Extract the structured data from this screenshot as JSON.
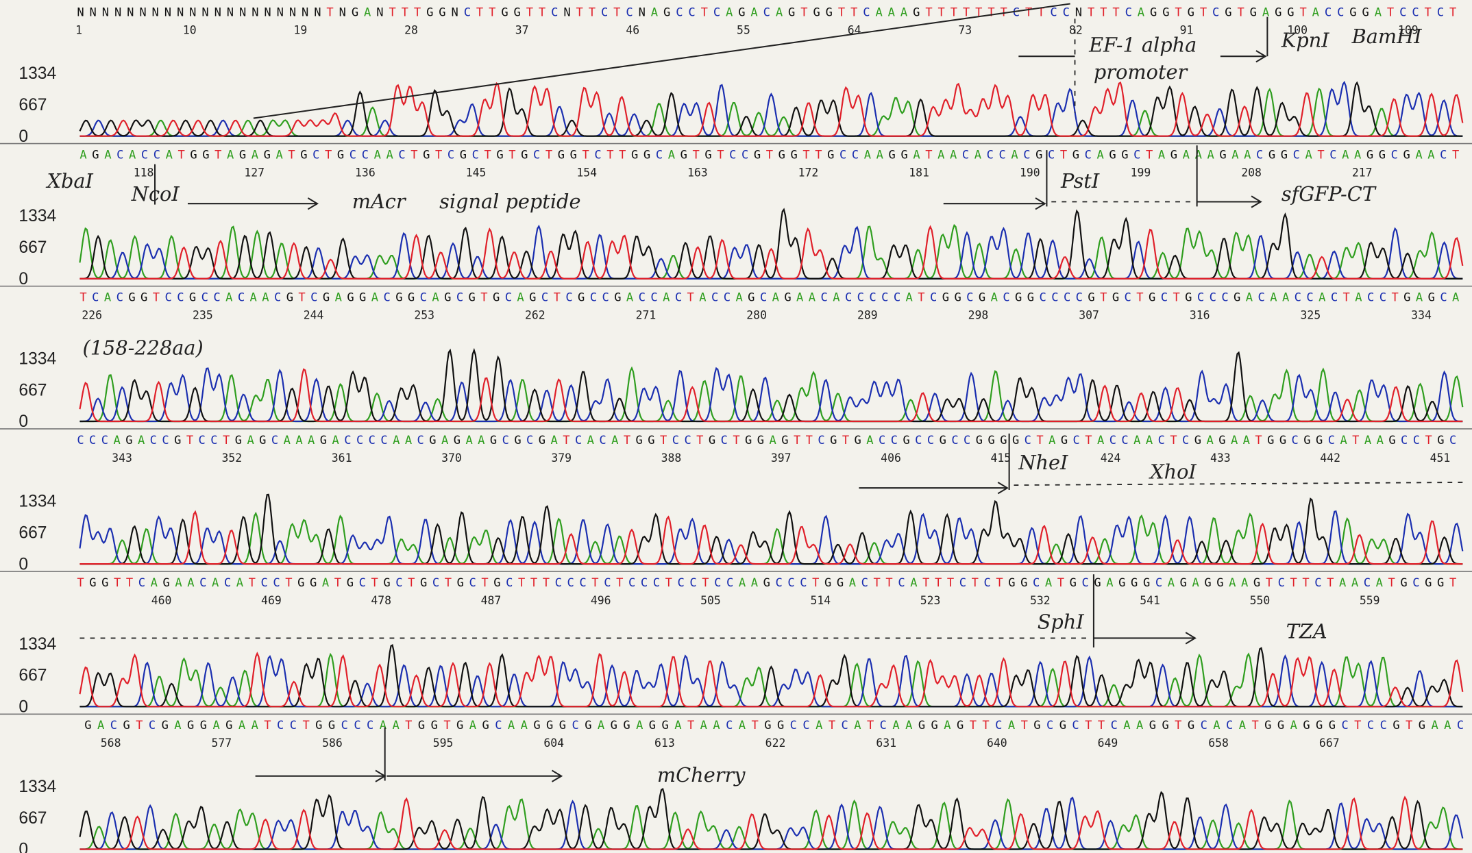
{
  "y_axis_ticks": [
    1334,
    667,
    0
  ],
  "rows": [
    {
      "sequence": "NNNNNNNNNNNNNNNNNNNNTNGANTTTGGNCTTGGTTCNTTCTCNAGCCTCAGACAGTGGTTCAAAGTTTTTTTCTTCCNTTTCAGGTGTCGTGAGGTACCGGATCCTCT",
      "positions": [
        1,
        10,
        19,
        28,
        37,
        46,
        55,
        64,
        73,
        82,
        91,
        100,
        109
      ],
      "annotations": [
        "EF-1 alpha",
        "promoter",
        "KpnI",
        "BamHI"
      ]
    },
    {
      "sequence": "AGACACCATGGTAGAGATGCTGCCAACTGTCGCTGTGCTGGTCTTGGCAGTGTCCGTGGTTGCCAAGGATAACACCACGCTGCAGGCTAGAAAGAACGGCATCAAGGCGAACT",
      "positions": [
        118,
        127,
        136,
        145,
        154,
        163,
        172,
        181,
        190,
        199,
        208,
        217
      ],
      "annotations": [
        "XbaI",
        "NcoI",
        "mAcr",
        "signal peptide",
        "PstI",
        "sfGFP-CT"
      ]
    },
    {
      "sequence": "TCACGGTCCGCCACAACGTCGAGGACGGCAGCGTGCAGCTCGCCGACCACTACCAGCAGAACACCCCCATCGGCGACGGCCCCGTGCTGCTGCCCGACAACCACTACCTGAGCA",
      "positions": [
        226,
        235,
        244,
        253,
        262,
        271,
        280,
        289,
        298,
        307,
        316,
        325,
        334
      ],
      "annotations": [
        "(158-228aa)"
      ]
    },
    {
      "sequence": "CCCAGACCGTCCTGAGCAAAGACCCCAACGAGAAGCGCGATCACATGGTCCTGCTGGAGTTCGTGACCGCCGCCGGGGCTAGCTACCAACTCGAGAATGGCGGCATAAGCCTGC",
      "positions": [
        343,
        352,
        361,
        370,
        379,
        388,
        397,
        406,
        415,
        424,
        433,
        442,
        451
      ],
      "annotations": [
        "NheI",
        "XhoI"
      ]
    },
    {
      "sequence": "TGGTTCAGAACACATCCTGGATGCTGCTGCTGCTGCTTTCCCTCTCCCTCCTCCAAGCCCTGGACTTCATTTCTCTGGCATGCGAGGGCAGAGGAAGTCTTCTAACATGCGGT",
      "positions": [
        460,
        469,
        478,
        487,
        496,
        505,
        514,
        523,
        532,
        541,
        550,
        559
      ],
      "annotations": [
        "SphI",
        "TZA"
      ]
    },
    {
      "sequence": "GACGTCGAGGAGAATCCTGGCCCAATGGTGAGCAAGGGCGAGGAGGATAACATGGCCATCATCAAGGAGTTCATGCGCTTCAAGGTGCACATGGAGGGCTCCGTGAAC",
      "positions": [
        568,
        577,
        586,
        595,
        604,
        613,
        622,
        631,
        640,
        649,
        658,
        667
      ],
      "annotations": [
        "mCherry"
      ]
    }
  ]
}
